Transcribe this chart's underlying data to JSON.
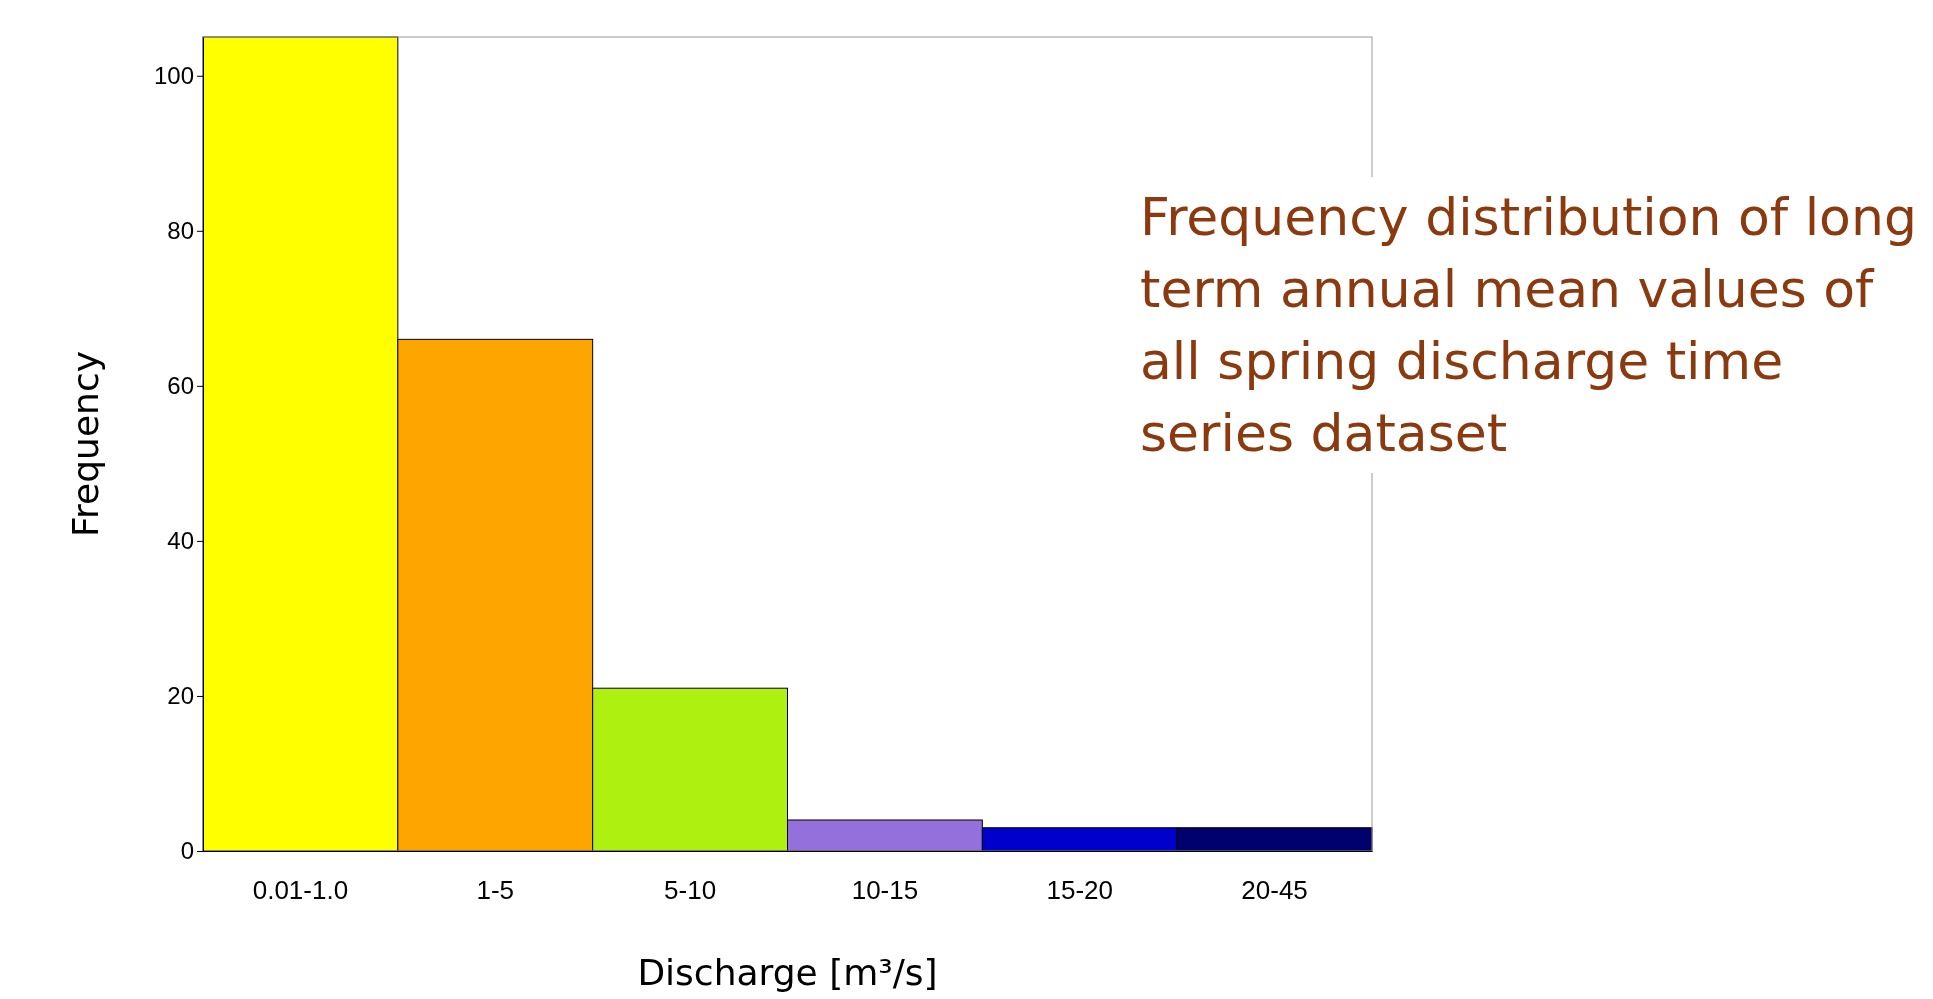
{
  "chart_data": {
    "type": "bar",
    "title": "Frequency distribution of long term annual mean values of all spring discharge time series dataset",
    "xlabel": "Discharge [m³/s]",
    "ylabel": "Frequency",
    "categories": [
      "0.01-1.0",
      "1-5",
      "5-10",
      "10-15",
      "15-20",
      "20-45"
    ],
    "values": [
      105,
      66,
      21,
      4,
      3,
      3
    ],
    "colors": [
      "#ffff00",
      "#ffa500",
      "#aef00f",
      "#9370db",
      "#0000cd",
      "#00006e"
    ],
    "ylim": [
      0,
      105
    ],
    "yticks": [
      0,
      20,
      40,
      60,
      80,
      100
    ],
    "grid": false
  }
}
